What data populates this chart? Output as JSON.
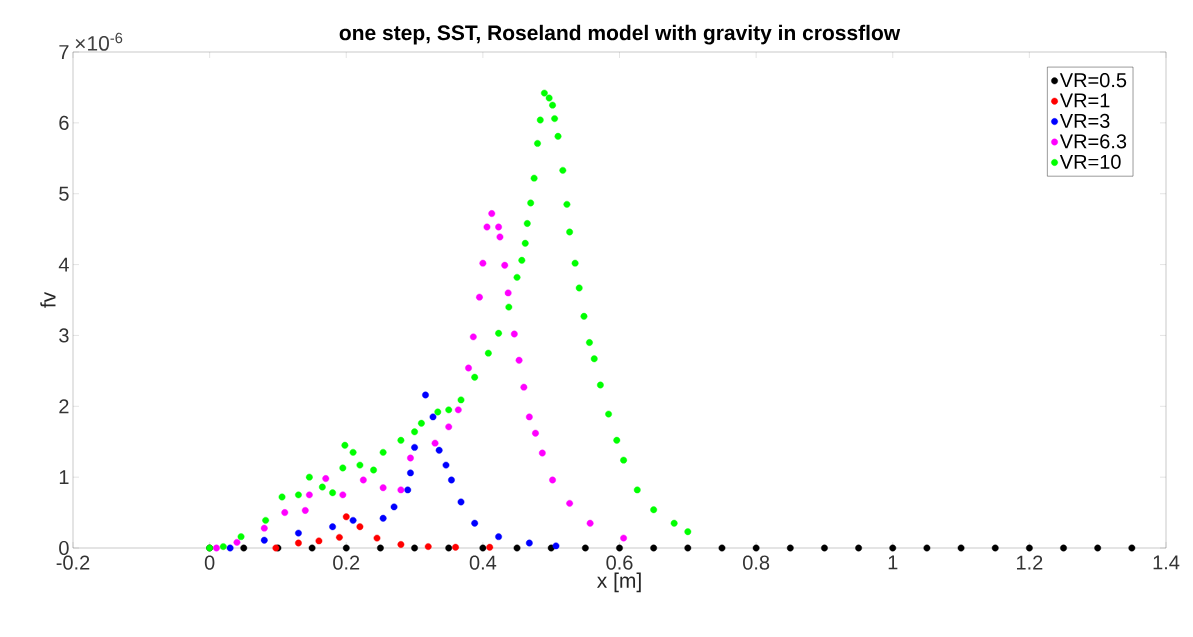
{
  "chart_data": {
    "type": "scatter",
    "title": "one step, SST, Roseland model with gravity in crossflow",
    "xlabel": "x [m]",
    "ylabel": "fv",
    "annotations": [
      "×10$^{-6}$"
    ],
    "xlim": [
      -0.2,
      1.4
    ],
    "ylim": [
      0,
      7
    ],
    "xticks": [
      -0.2,
      0,
      0.2,
      0.4,
      0.6,
      0.8,
      1,
      1.2,
      1.4
    ],
    "yticks": [
      0,
      1,
      2,
      3,
      4,
      5,
      6,
      7
    ],
    "grid": false,
    "legend": "top right",
    "marker": "circle",
    "series": [
      {
        "name": "VR=0.5",
        "color": "#000000",
        "x": [
          0,
          0.05,
          0.1,
          0.15,
          0.2,
          0.25,
          0.3,
          0.35,
          0.4,
          0.45,
          0.5,
          0.55,
          0.6,
          0.65,
          0.7,
          0.75,
          0.8,
          0.85,
          0.9,
          0.95,
          1,
          1.05,
          1.1,
          1.15,
          1.2,
          1.25,
          1.3,
          1.35
        ],
        "values": [
          0,
          0,
          0,
          0,
          0,
          0,
          0,
          0,
          0,
          0,
          0,
          0,
          0,
          0,
          0,
          0,
          0,
          0,
          0,
          0,
          0,
          0,
          0,
          0,
          0,
          0,
          0,
          0
        ]
      },
      {
        "name": "VR=1",
        "color": "#ff0000",
        "x": [
          0.097,
          0.13,
          0.16,
          0.19,
          0.2,
          0.22,
          0.245,
          0.28,
          0.32,
          0.36,
          0.41
        ],
        "values": [
          0,
          0.07,
          0.1,
          0.15,
          0.44,
          0.3,
          0.14,
          0.05,
          0.02,
          0.01,
          0.01
        ]
      },
      {
        "name": "VR=3",
        "color": "#0000ff",
        "x": [
          0.03,
          0.08,
          0.13,
          0.18,
          0.21,
          0.254,
          0.27,
          0.29,
          0.294,
          0.3,
          0.316,
          0.327,
          0.336,
          0.346,
          0.354,
          0.368,
          0.388,
          0.423,
          0.468,
          0.507
        ],
        "values": [
          0,
          0.11,
          0.21,
          0.3,
          0.39,
          0.42,
          0.58,
          0.82,
          1.06,
          1.42,
          2.16,
          1.85,
          1.38,
          1.17,
          0.96,
          0.65,
          0.35,
          0.16,
          0.07,
          0.03
        ]
      },
      {
        "name": "VR=6.3",
        "color": "#ff00ff",
        "x": [
          0.01,
          0.04,
          0.08,
          0.11,
          0.14,
          0.146,
          0.17,
          0.195,
          0.225,
          0.254,
          0.28,
          0.294,
          0.33,
          0.35,
          0.364,
          0.379,
          0.386,
          0.395,
          0.4,
          0.406,
          0.413,
          0.423,
          0.425,
          0.432,
          0.437,
          0.446,
          0.453,
          0.46,
          0.468,
          0.477,
          0.487,
          0.502,
          0.527,
          0.557,
          0.606
        ],
        "values": [
          0,
          0.08,
          0.28,
          0.5,
          0.53,
          0.75,
          0.98,
          0.75,
          0.96,
          0.85,
          0.82,
          1.27,
          1.48,
          1.71,
          1.95,
          2.54,
          2.98,
          3.54,
          4.02,
          4.53,
          4.72,
          4.53,
          4.39,
          3.99,
          3.6,
          3.02,
          2.65,
          2.27,
          1.85,
          1.62,
          1.34,
          0.96,
          0.63,
          0.35,
          0.14
        ]
      },
      {
        "name": "VR=10",
        "color": "#00ff00",
        "x": [
          0,
          0.02,
          0.046,
          0.082,
          0.106,
          0.13,
          0.146,
          0.165,
          0.18,
          0.195,
          0.198,
          0.21,
          0.22,
          0.24,
          0.254,
          0.28,
          0.3,
          0.31,
          0.334,
          0.35,
          0.368,
          0.388,
          0.408,
          0.423,
          0.438,
          0.45,
          0.457,
          0.462,
          0.465,
          0.47,
          0.475,
          0.48,
          0.484,
          0.49,
          0.497,
          0.502,
          0.505,
          0.51,
          0.517,
          0.523,
          0.527,
          0.535,
          0.541,
          0.548,
          0.556,
          0.563,
          0.572,
          0.584,
          0.596,
          0.606,
          0.626,
          0.65,
          0.68,
          0.7
        ],
        "values": [
          0,
          0.02,
          0.16,
          0.39,
          0.72,
          0.75,
          1.0,
          0.86,
          0.78,
          1.13,
          1.45,
          1.35,
          1.17,
          1.1,
          1.35,
          1.52,
          1.64,
          1.76,
          1.92,
          1.95,
          2.09,
          2.41,
          2.75,
          3.03,
          3.4,
          3.82,
          4.06,
          4.3,
          4.58,
          4.87,
          5.22,
          5.71,
          6.04,
          6.42,
          6.35,
          6.25,
          6.06,
          5.81,
          5.33,
          4.85,
          4.46,
          4.02,
          3.67,
          3.27,
          2.9,
          2.67,
          2.3,
          1.89,
          1.52,
          1.24,
          0.82,
          0.54,
          0.35,
          0.23
        ]
      }
    ]
  }
}
